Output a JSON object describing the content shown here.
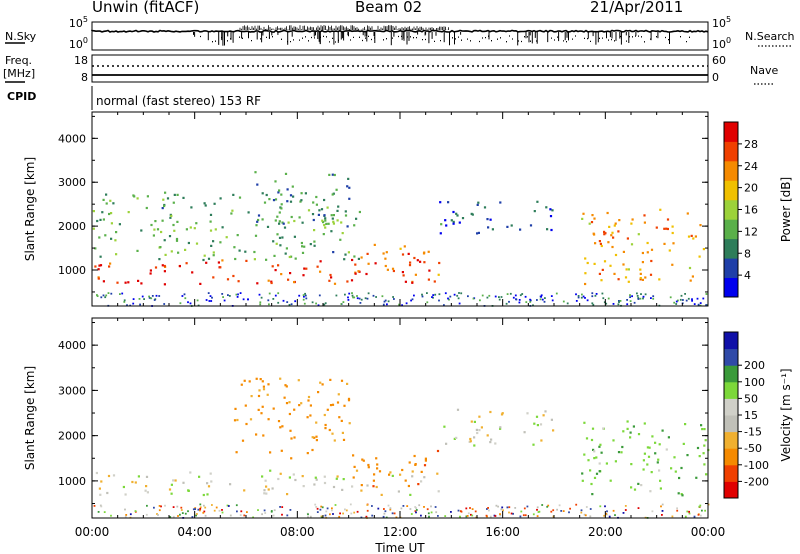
{
  "header": {
    "station": "Unwin (fitACF)",
    "beam": "Beam 02",
    "date": "21/Apr/2011"
  },
  "top_panels": {
    "nsky_label": "N.Sky",
    "nsearch_label": "N.Search",
    "nsky_ticks": [
      "10^5",
      "10^0"
    ],
    "nsearch_ticks": [
      "10^5",
      "10^0"
    ],
    "freq_label_1": "Freq.",
    "freq_label_2": "[MHz]",
    "freq_ticks": [
      "18",
      "8"
    ],
    "nave_label": "Nave",
    "nave_ticks": [
      "60",
      "0"
    ],
    "cpid_label": "CPID",
    "cpid_text": "normal (fast stereo) 153 RF"
  },
  "colors": {
    "power": [
      "#0000ee",
      "#1f3fa8",
      "#2e7d5a",
      "#5ab04a",
      "#9cd23a",
      "#f0c000",
      "#f58a00",
      "#f04000",
      "#e00000"
    ],
    "velocity": [
      "#e00000",
      "#f04000",
      "#f58a00",
      "#f0b030",
      "#c0c0b8",
      "#d0d0c8",
      "#7cd83a",
      "#3a9a3a",
      "#304aa8",
      "#1010a8"
    ]
  },
  "chart_data": [
    {
      "type": "heatmap",
      "name": "power",
      "ylabel": "Slant Range [km]",
      "yticks": [
        1000,
        2000,
        3000,
        4000
      ],
      "ylim": [
        180,
        4600
      ],
      "xlim": [
        0,
        24
      ],
      "colorbar_label": "Power [dB]",
      "colorbar_ticks": [
        4,
        8,
        12,
        16,
        20,
        24,
        28
      ],
      "colorbar_range": [
        0,
        32
      ],
      "echo_regions": [
        {
          "t0": 0.0,
          "t1": 13.5,
          "r0": 700,
          "r1": 1250,
          "value": 28
        },
        {
          "t0": 0.0,
          "t1": 10.5,
          "r0": 1250,
          "r1": 2800,
          "value": 12
        },
        {
          "t0": 6.0,
          "t1": 10.0,
          "r0": 2000,
          "r1": 3300,
          "value": 10
        },
        {
          "t0": 10.0,
          "t1": 13.5,
          "r0": 900,
          "r1": 1600,
          "value": 24
        },
        {
          "t0": 13.5,
          "t1": 18.0,
          "r0": 1800,
          "r1": 2600,
          "value": 6
        },
        {
          "t0": 19.0,
          "t1": 24.0,
          "r0": 700,
          "r1": 2400,
          "value": 22
        }
      ]
    },
    {
      "type": "heatmap",
      "name": "velocity",
      "ylabel": "Slant Range [km]",
      "xlabel": "Time UT",
      "yticks": [
        1000,
        2000,
        3000,
        4000
      ],
      "ylim": [
        180,
        4600
      ],
      "xlim": [
        0,
        24
      ],
      "xticks": [
        "00:00",
        "04:00",
        "08:00",
        "12:00",
        "16:00",
        "20:00",
        "00:00"
      ],
      "colorbar_label": "Velocity [m s^-1]",
      "colorbar_ticks": [
        "-200",
        "-100",
        "-50",
        "-15",
        "15",
        "50",
        "100",
        "200"
      ],
      "echo_regions": [
        {
          "t0": 0.0,
          "t1": 13.5,
          "r0": 700,
          "r1": 1250,
          "value": -5
        },
        {
          "t0": 5.5,
          "t1": 10.0,
          "r0": 1500,
          "r1": 3300,
          "value": -60
        },
        {
          "t0": 10.0,
          "t1": 13.5,
          "r0": 900,
          "r1": 1700,
          "value": -80
        },
        {
          "t0": 13.5,
          "t1": 18.0,
          "r0": 1800,
          "r1": 2600,
          "value": 0
        },
        {
          "t0": 19.0,
          "t1": 24.0,
          "r0": 700,
          "r1": 2400,
          "value": 40
        }
      ]
    }
  ]
}
